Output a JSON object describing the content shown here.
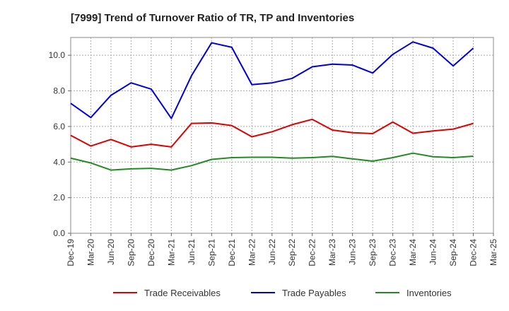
{
  "chart_data": {
    "type": "line",
    "title": "[7999]  Trend of Turnover Ratio of TR, TP and Inventories",
    "xlabel": "",
    "ylabel": "",
    "x": [
      "Dec-19",
      "Mar-20",
      "Jun-20",
      "Sep-20",
      "Dec-20",
      "Mar-21",
      "Jun-21",
      "Sep-21",
      "Dec-21",
      "Mar-22",
      "Jun-22",
      "Sep-22",
      "Dec-22",
      "Mar-23",
      "Jun-23",
      "Sep-23",
      "Dec-23",
      "Mar-24",
      "Jun-24",
      "Sep-24",
      "Dec-24",
      "Mar-25"
    ],
    "ylim": [
      0,
      11
    ],
    "yticks": [
      0.0,
      2.0,
      4.0,
      6.0,
      8.0,
      10.0
    ],
    "ytick_labels": [
      "0.0",
      "2.0",
      "4.0",
      "6.0",
      "8.0",
      "10.0"
    ],
    "grid": true,
    "legend_position": "bottom",
    "series": [
      {
        "name": "Trade Receivables",
        "color": "#e00000",
        "values": [
          5.5,
          4.9,
          5.27,
          4.85,
          5.0,
          4.85,
          6.17,
          6.2,
          6.05,
          5.42,
          5.7,
          6.1,
          6.4,
          5.8,
          5.65,
          5.6,
          6.25,
          5.62,
          5.75,
          5.85,
          6.17,
          null
        ]
      },
      {
        "name": "Trade Payables",
        "color": "#0000dd",
        "values": [
          7.3,
          6.5,
          7.75,
          8.45,
          8.1,
          6.45,
          8.85,
          10.7,
          10.45,
          8.35,
          8.45,
          8.7,
          9.35,
          9.5,
          9.45,
          9.0,
          10.05,
          10.75,
          10.4,
          9.4,
          10.4,
          null
        ]
      },
      {
        "name": "Inventories",
        "color": "#228b22",
        "values": [
          4.22,
          3.95,
          3.55,
          3.62,
          3.65,
          3.55,
          3.8,
          4.15,
          4.25,
          4.27,
          4.27,
          4.22,
          4.25,
          4.32,
          4.18,
          4.05,
          4.25,
          4.5,
          4.3,
          4.25,
          4.33,
          null
        ]
      }
    ]
  }
}
